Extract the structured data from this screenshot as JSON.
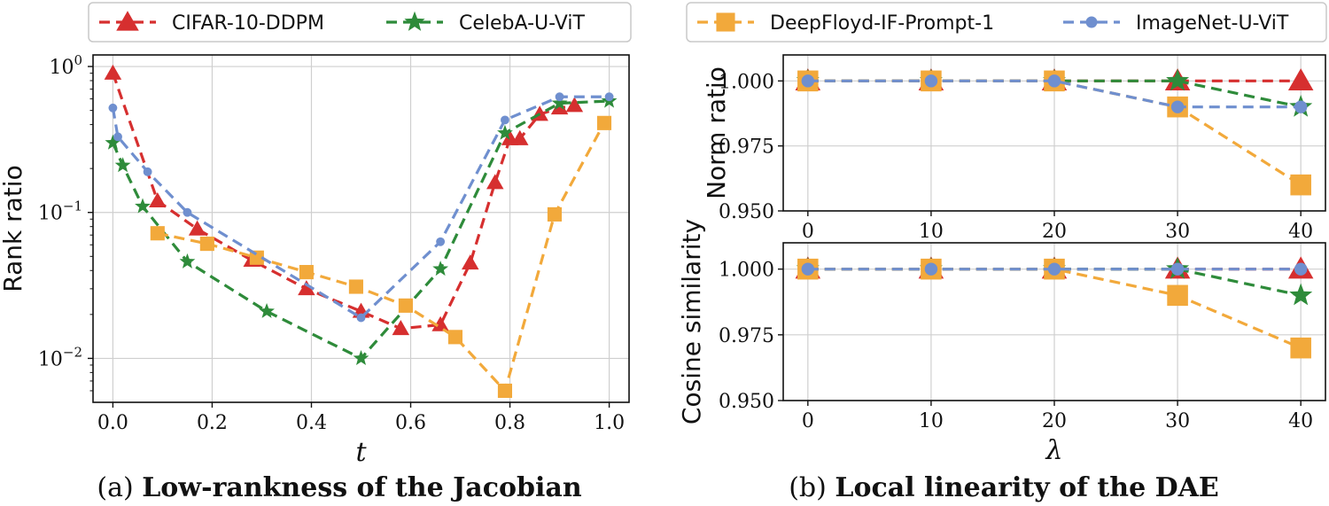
{
  "series_styles": [
    {
      "name": "CIFAR-10-DDPM",
      "color": "#d62f2f",
      "marker": "triangle"
    },
    {
      "name": "CelebA-U-ViT",
      "color": "#2e8b3a",
      "marker": "star"
    },
    {
      "name": "DeepFloyd-IF-Prompt-1",
      "color": "#f2a93b",
      "marker": "square"
    },
    {
      "name": "ImageNet-U-ViT",
      "color": "#6f8fcf",
      "marker": "circle"
    }
  ],
  "captions": {
    "a_prefix": "(a)",
    "a_bold": "Low-rankness of the Jacobian",
    "b_prefix": "(b)",
    "b_bold": "Local linearity of the DAE"
  },
  "chart_data": [
    {
      "type": "line",
      "title": "",
      "xlabel": "t",
      "ylabel": "Rank ratio",
      "yscale": "log",
      "xlim": [
        -0.04,
        1.04
      ],
      "ylim": [
        0.005,
        1.2
      ],
      "xticks": [
        {
          "v": 0.0,
          "label": "0.0"
        },
        {
          "v": 0.2,
          "label": "0.2"
        },
        {
          "v": 0.4,
          "label": "0.4"
        },
        {
          "v": 0.6,
          "label": "0.6"
        },
        {
          "v": 0.8,
          "label": "0.8"
        },
        {
          "v": 1.0,
          "label": "1.0"
        }
      ],
      "yticks": [
        {
          "v": 1,
          "base": "10",
          "exp": "0"
        },
        {
          "v": 0.1,
          "base": "10",
          "exp": "−1"
        },
        {
          "v": 0.01,
          "base": "10",
          "exp": "−2"
        }
      ],
      "grid": true,
      "legend_position": "top",
      "series": [
        {
          "name": "CIFAR-10-DDPM",
          "x": [
            0.0,
            0.09,
            0.17,
            0.28,
            0.39,
            0.5,
            0.58,
            0.66,
            0.72,
            0.77,
            0.8,
            0.82,
            0.86,
            0.9,
            0.93
          ],
          "y": [
            0.9,
            0.12,
            0.077,
            0.047,
            0.03,
            0.021,
            0.016,
            0.017,
            0.045,
            0.16,
            0.32,
            0.32,
            0.47,
            0.52,
            0.54
          ]
        },
        {
          "name": "CelebA-U-ViT",
          "x": [
            0.0,
            0.02,
            0.06,
            0.15,
            0.31,
            0.5,
            0.66,
            0.79,
            0.9,
            1.0
          ],
          "y": [
            0.3,
            0.21,
            0.11,
            0.046,
            0.021,
            0.01,
            0.041,
            0.35,
            0.56,
            0.58
          ]
        },
        {
          "name": "DeepFloyd-IF-Prompt-1",
          "x": [
            0.09,
            0.19,
            0.29,
            0.39,
            0.49,
            0.59,
            0.69,
            0.79,
            0.89,
            0.99
          ],
          "y": [
            0.072,
            0.061,
            0.049,
            0.039,
            0.031,
            0.023,
            0.014,
            0.006,
            0.097,
            0.41
          ]
        },
        {
          "name": "ImageNet-U-ViT",
          "x": [
            0.0,
            0.01,
            0.07,
            0.15,
            0.5,
            0.66,
            0.79,
            0.9,
            1.0
          ],
          "y": [
            0.52,
            0.33,
            0.19,
            0.1,
            0.019,
            0.063,
            0.43,
            0.62,
            0.62
          ]
        }
      ]
    },
    {
      "type": "line",
      "title": "",
      "xlabel": "",
      "ylabel": "Norm ratio",
      "xlim": [
        -2,
        42
      ],
      "ylim": [
        0.95,
        1.01
      ],
      "xticks": [
        {
          "v": 0,
          "label": "0"
        },
        {
          "v": 10,
          "label": "10"
        },
        {
          "v": 20,
          "label": "20"
        },
        {
          "v": 30,
          "label": "30"
        },
        {
          "v": 40,
          "label": "40"
        }
      ],
      "yticks": [
        {
          "v": 0.95,
          "label": "0.950"
        },
        {
          "v": 0.975,
          "label": "0.975"
        },
        {
          "v": 1.0,
          "label": "1.000"
        }
      ],
      "grid": true,
      "series": [
        {
          "name": "CIFAR-10-DDPM",
          "x": [
            0,
            10,
            20,
            30,
            40
          ],
          "y": [
            1.0,
            1.0,
            1.0,
            1.0,
            1.0
          ]
        },
        {
          "name": "CelebA-U-ViT",
          "x": [
            0,
            10,
            20,
            30,
            40
          ],
          "y": [
            1.0,
            1.0,
            1.0,
            1.0,
            0.99
          ]
        },
        {
          "name": "DeepFloyd-IF-Prompt-1",
          "x": [
            0,
            10,
            20,
            30,
            40
          ],
          "y": [
            1.0,
            1.0,
            1.0,
            0.99,
            0.96
          ]
        },
        {
          "name": "ImageNet-U-ViT",
          "x": [
            0,
            10,
            20,
            30,
            40
          ],
          "y": [
            1.0,
            1.0,
            1.0,
            0.99,
            0.99
          ]
        }
      ]
    },
    {
      "type": "line",
      "title": "",
      "xlabel": "λ",
      "ylabel": "Cosine similarity",
      "xlim": [
        -2,
        42
      ],
      "ylim": [
        0.95,
        1.01
      ],
      "xticks": [
        {
          "v": 0,
          "label": "0"
        },
        {
          "v": 10,
          "label": "10"
        },
        {
          "v": 20,
          "label": "20"
        },
        {
          "v": 30,
          "label": "30"
        },
        {
          "v": 40,
          "label": "40"
        }
      ],
      "yticks": [
        {
          "v": 0.95,
          "label": "0.950"
        },
        {
          "v": 0.975,
          "label": "0.975"
        },
        {
          "v": 1.0,
          "label": "1.000"
        }
      ],
      "grid": true,
      "series": [
        {
          "name": "CIFAR-10-DDPM",
          "x": [
            0,
            10,
            20,
            30,
            40
          ],
          "y": [
            1.0,
            1.0,
            1.0,
            1.0,
            1.0
          ]
        },
        {
          "name": "CelebA-U-ViT",
          "x": [
            0,
            10,
            20,
            30,
            40
          ],
          "y": [
            1.0,
            1.0,
            1.0,
            1.0,
            0.99
          ]
        },
        {
          "name": "DeepFloyd-IF-Prompt-1",
          "x": [
            0,
            10,
            20,
            30,
            40
          ],
          "y": [
            1.0,
            1.0,
            1.0,
            0.99,
            0.97
          ]
        },
        {
          "name": "ImageNet-U-ViT",
          "x": [
            0,
            10,
            20,
            30,
            40
          ],
          "y": [
            1.0,
            1.0,
            1.0,
            1.0,
            1.0
          ]
        }
      ]
    }
  ]
}
